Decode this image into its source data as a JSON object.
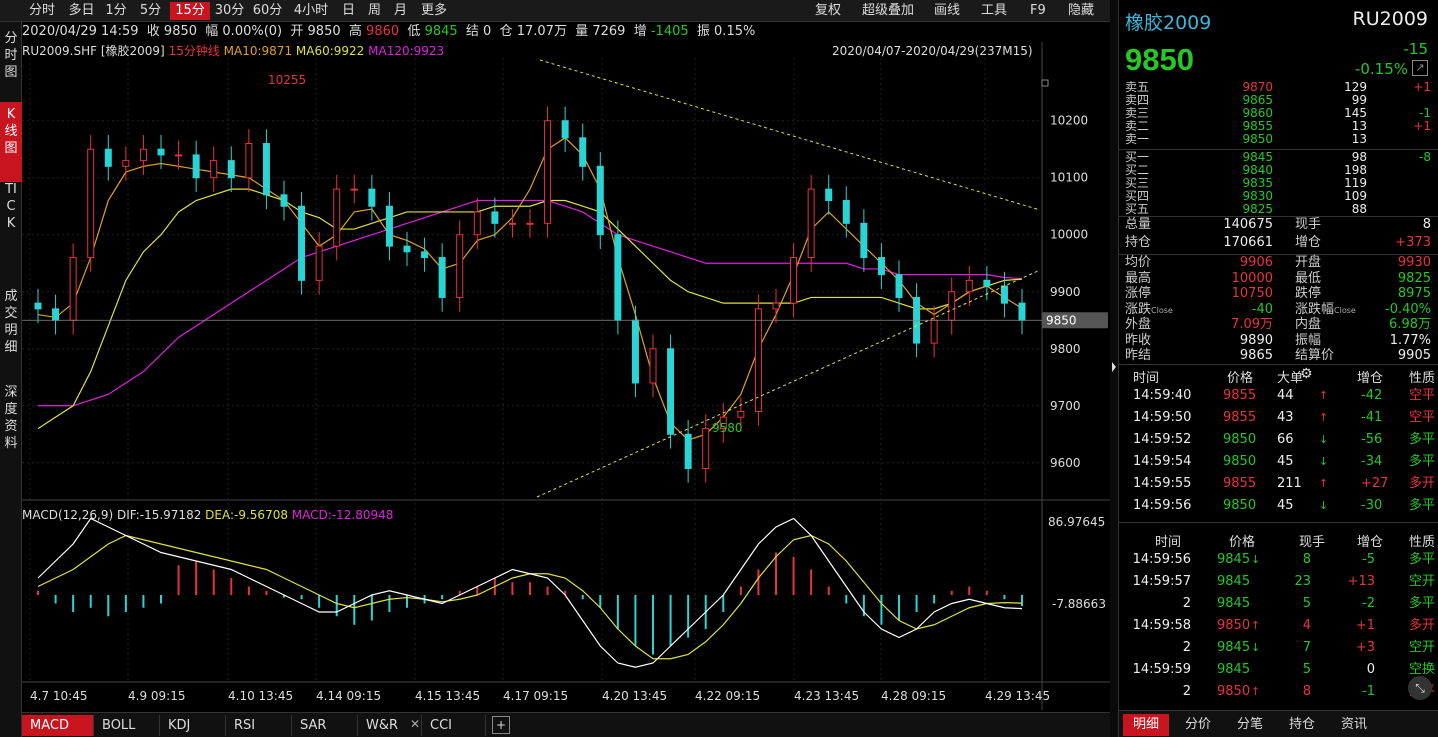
{
  "toolbar": {
    "periods": [
      "分时",
      "多日",
      "1分",
      "5分",
      "15分",
      "30分",
      "60分",
      "4小时",
      "日",
      "周",
      "月",
      "更多"
    ],
    "active_period": "15分",
    "right_items": [
      "复权",
      "超级叠加",
      "画线",
      "工具",
      "F9",
      "隐藏"
    ]
  },
  "left_nav": [
    {
      "label": "分时图",
      "active": false
    },
    {
      "label": "K线图",
      "active": true
    },
    {
      "label": "TICK",
      "active": false
    },
    {
      "label": "成交明细",
      "active": false
    },
    {
      "label": "深度资料",
      "active": false
    }
  ],
  "info_bar": {
    "time": "2020/04/29 14:59",
    "close": "收 9850",
    "change": "幅 0.00%(0)",
    "open": "开 9850",
    "high_label": "高",
    "high": "9860",
    "low_label": "低",
    "low": "9845",
    "settle": "结 0",
    "oi": "仓 17.07万",
    "vol": "量 7269",
    "inc_label": "增",
    "inc": "-1405",
    "amp": "振 0.15%"
  },
  "chart_header": {
    "symbol": "RU2009.SHF [橡胶2009]",
    "period": "15分钟线",
    "ma10": "MA10:9871",
    "ma60": "MA60:9922",
    "ma120": "MA120:9923",
    "range": "2020/04/07-2020/04/29(237M15)"
  },
  "chart_data": {
    "type": "candlestick",
    "price_ticks": [
      "10200",
      "10100",
      "10000",
      "9900",
      "9800",
      "9700",
      "9600"
    ],
    "price_tick_values": [
      10200,
      10100,
      10000,
      9900,
      9800,
      9700,
      9600
    ],
    "current_price": "9850",
    "high_marker": "10255",
    "low_marker": "9580",
    "x_labels": [
      "4.7 10:45",
      "4.9 09:15",
      "4.10 13:45",
      "4.14 09:15",
      "4.15 13:45",
      "4.17 09:15",
      "4.20 13:45",
      "4.22 09:15",
      "4.23 13:45",
      "4.28 09:15",
      "4.29 13:45"
    ],
    "ylim": [
      9540,
      10310
    ],
    "close_points": [
      9870,
      9850,
      9960,
      10150,
      10120,
      10130,
      10150,
      10140,
      10140,
      10100,
      10130,
      10100,
      10160,
      10070,
      10050,
      9920,
      9980,
      10080,
      10080,
      10050,
      9980,
      9970,
      9960,
      9890,
      10000,
      10040,
      10020,
      10020,
      10020,
      10200,
      10170,
      10120,
      10000,
      9850,
      9740,
      9800,
      9650,
      9590,
      9660,
      9680,
      9690,
      9870,
      9880,
      9960,
      10080,
      10060,
      10020,
      9960,
      9930,
      9890,
      9810,
      9850,
      9900,
      9920,
      9910,
      9880,
      9850
    ],
    "ma10_points": [
      9860,
      9855,
      9880,
      9960,
      10060,
      10110,
      10120,
      10125,
      10120,
      10115,
      10110,
      10105,
      10100,
      10080,
      10060,
      10020,
      9980,
      10000,
      10040,
      10045,
      10000,
      9990,
      9975,
      9940,
      9950,
      9990,
      10000,
      10030,
      10080,
      10150,
      10170,
      10140,
      10080,
      9960,
      9860,
      9750,
      9670,
      9640,
      9650,
      9680,
      9720,
      9800,
      9860,
      9930,
      10010,
      10040,
      10010,
      9980,
      9950,
      9920,
      9880,
      9860,
      9880,
      9900,
      9910,
      9890,
      9871
    ],
    "ma60_points": [
      9660,
      9680,
      9700,
      9760,
      9840,
      9920,
      9970,
      10000,
      10040,
      10060,
      10070,
      10080,
      10080,
      10070,
      10060,
      10040,
      10030,
      10010,
      10010,
      10020,
      10030,
      10040,
      10040,
      10040,
      10040,
      10040,
      10050,
      10050,
      10050,
      10060,
      10060,
      10050,
      10040,
      10010,
      9980,
      9950,
      9920,
      9900,
      9890,
      9880,
      9880,
      9880,
      9880,
      9880,
      9890,
      9890,
      9890,
      9890,
      9890,
      9880,
      9870,
      9870,
      9880,
      9900,
      9910,
      9920,
      9922
    ],
    "ma120_points": [
      9700,
      9700,
      9700,
      9710,
      9720,
      9740,
      9760,
      9790,
      9820,
      9840,
      9860,
      9880,
      9900,
      9920,
      9940,
      9960,
      9970,
      9980,
      9990,
      10000,
      10010,
      10020,
      10030,
      10040,
      10050,
      10060,
      10060,
      10060,
      10060,
      10060,
      10050,
      10040,
      10020,
      10000,
      9990,
      9980,
      9970,
      9960,
      9950,
      9950,
      9950,
      9950,
      9950,
      9950,
      9950,
      9950,
      9950,
      9940,
      9940,
      9930,
      9930,
      9930,
      9930,
      9930,
      9930,
      9925,
      9923
    ],
    "macd": {
      "label": "MACD(12,26,9)",
      "dif": "DIF:-15.97182",
      "dea": "DEA:-9.56708",
      "macd": "MACD:-12.80948",
      "ticks": [
        "86.97645",
        "-7.88663"
      ],
      "hist": [
        5,
        -10,
        -20,
        -15,
        -25,
        -20,
        -15,
        -10,
        35,
        40,
        30,
        20,
        10,
        5,
        -3,
        -5,
        -15,
        -25,
        -35,
        -30,
        -20,
        -15,
        -10,
        -5,
        5,
        10,
        20,
        15,
        15,
        10,
        5,
        -5,
        -15,
        -40,
        -60,
        -70,
        -60,
        -50,
        -40,
        -20,
        10,
        30,
        50,
        45,
        30,
        10,
        -10,
        -25,
        -35,
        -30,
        -20,
        -10,
        5,
        10,
        5,
        -5,
        -13
      ],
      "dif_line": [
        20,
        40,
        60,
        90,
        80,
        70,
        60,
        50,
        45,
        40,
        35,
        30,
        20,
        10,
        0,
        -10,
        -20,
        -20,
        -10,
        0,
        5,
        0,
        -5,
        -10,
        0,
        10,
        20,
        30,
        25,
        20,
        0,
        -30,
        -60,
        -80,
        -85,
        -80,
        -60,
        -40,
        -20,
        0,
        30,
        60,
        80,
        90,
        70,
        40,
        10,
        -20,
        -40,
        -50,
        -40,
        -20,
        -10,
        -5,
        -10,
        -15,
        -16
      ],
      "dea_line": [
        10,
        20,
        30,
        45,
        60,
        70,
        65,
        60,
        55,
        50,
        45,
        40,
        35,
        30,
        20,
        10,
        0,
        -10,
        -15,
        -10,
        -5,
        -3,
        -5,
        -8,
        -5,
        0,
        10,
        20,
        25,
        25,
        20,
        5,
        -15,
        -40,
        -60,
        -75,
        -75,
        -70,
        -55,
        -35,
        -10,
        20,
        45,
        65,
        70,
        60,
        40,
        15,
        -10,
        -30,
        -40,
        -35,
        -25,
        -15,
        -10,
        -9,
        -9.6
      ]
    }
  },
  "indicator_tabs": [
    "MACD",
    "BOLL",
    "KDJ",
    "RSI",
    "SAR",
    "W&R",
    "CCI"
  ],
  "quote": {
    "name": "橡胶2009",
    "code": "RU2009",
    "price": "9850",
    "change": "-15",
    "pct": "-0.15%",
    "asks": [
      {
        "label": "卖五",
        "price": "9870",
        "vol": "129",
        "chg": "+1"
      },
      {
        "label": "卖四",
        "price": "9865",
        "vol": "99",
        "chg": ""
      },
      {
        "label": "卖三",
        "price": "9860",
        "vol": "145",
        "chg": "-1"
      },
      {
        "label": "卖二",
        "price": "9855",
        "vol": "13",
        "chg": "+1"
      },
      {
        "label": "卖一",
        "price": "9850",
        "vol": "13",
        "chg": ""
      }
    ],
    "bids": [
      {
        "label": "买一",
        "price": "9845",
        "vol": "98",
        "chg": "-8"
      },
      {
        "label": "买二",
        "price": "9840",
        "vol": "198",
        "chg": ""
      },
      {
        "label": "买三",
        "price": "9835",
        "vol": "119",
        "chg": ""
      },
      {
        "label": "买四",
        "price": "9830",
        "vol": "109",
        "chg": ""
      },
      {
        "label": "买五",
        "price": "9825",
        "vol": "88",
        "chg": ""
      }
    ],
    "stats_a": [
      {
        "l": "总量",
        "v": "140675",
        "l2": "现手",
        "v2": "8"
      },
      {
        "l": "持仓",
        "v": "170661",
        "l2": "增仓",
        "v2": "+373"
      }
    ],
    "stats_b": [
      {
        "l": "均价",
        "v": "9906",
        "l2": "开盘",
        "v2": "9930"
      },
      {
        "l": "最高",
        "v": "10000",
        "l2": "最低",
        "v2": "9825"
      },
      {
        "l": "涨停",
        "v": "10750",
        "l2": "跌停",
        "v2": "8975"
      },
      {
        "l": "涨跌",
        "v": "-40",
        "l2": "涨跌幅",
        "v2": "-0.40%"
      },
      {
        "l": "外盘",
        "v": "7.09万",
        "l2": "内盘",
        "v2": "6.98万"
      },
      {
        "l": "昨收",
        "v": "9890",
        "l2": "振幅",
        "v2": "1.77%"
      },
      {
        "l": "昨结",
        "v": "9865",
        "l2": "结算价",
        "v2": "9905"
      }
    ],
    "close_tag": "Close"
  },
  "big_trades": {
    "headers": [
      "时间",
      "价格",
      "大单",
      "增仓",
      "性质"
    ],
    "rows": [
      {
        "t": "14:59:40",
        "p": "9855",
        "v": "44",
        "d": "up",
        "c": "-42",
        "n": "空平",
        "nc": "red"
      },
      {
        "t": "14:59:50",
        "p": "9855",
        "v": "43",
        "d": "up",
        "c": "-41",
        "n": "空平",
        "nc": "red"
      },
      {
        "t": "14:59:52",
        "p": "9850",
        "v": "66",
        "d": "down",
        "c": "-56",
        "n": "多平",
        "nc": "green"
      },
      {
        "t": "14:59:54",
        "p": "9850",
        "v": "45",
        "d": "down",
        "c": "-34",
        "n": "多平",
        "nc": "green"
      },
      {
        "t": "14:59:55",
        "p": "9855",
        "v": "211",
        "d": "up",
        "c": "+27",
        "n": "多开",
        "nc": "red"
      },
      {
        "t": "14:59:56",
        "p": "9850",
        "v": "45",
        "d": "down",
        "c": "-30",
        "n": "多平",
        "nc": "green"
      }
    ]
  },
  "ticks": {
    "headers": [
      "时间",
      "价格",
      "现手",
      "增仓",
      "性质"
    ],
    "rows": [
      {
        "t": "14:59:56",
        "p": "9845",
        "d": "down",
        "v": "8",
        "c": "-5",
        "n": "多平",
        "nc": "green"
      },
      {
        "t": "14:59:57",
        "p": "9845",
        "d": "",
        "v": "23",
        "c": "+13",
        "n": "空开",
        "nc": "green"
      },
      {
        "t": "2",
        "p": "9845",
        "d": "",
        "v": "5",
        "c": "-2",
        "n": "多平",
        "nc": "green"
      },
      {
        "t": "14:59:58",
        "p": "9850",
        "d": "up",
        "v": "4",
        "c": "+1",
        "n": "多开",
        "nc": "red"
      },
      {
        "t": "2",
        "p": "9845",
        "d": "down",
        "v": "7",
        "c": "+3",
        "n": "空开",
        "nc": "green"
      },
      {
        "t": "14:59:59",
        "p": "9845",
        "d": "",
        "v": "5",
        "c": "0",
        "n": "空换",
        "nc": "green"
      },
      {
        "t": "2",
        "p": "9850",
        "d": "up",
        "v": "8",
        "c": "-1",
        "n": "空平",
        "nc": "red"
      }
    ]
  },
  "right_tabs": [
    "明细",
    "分价",
    "分笔",
    "持仓",
    "资讯"
  ]
}
